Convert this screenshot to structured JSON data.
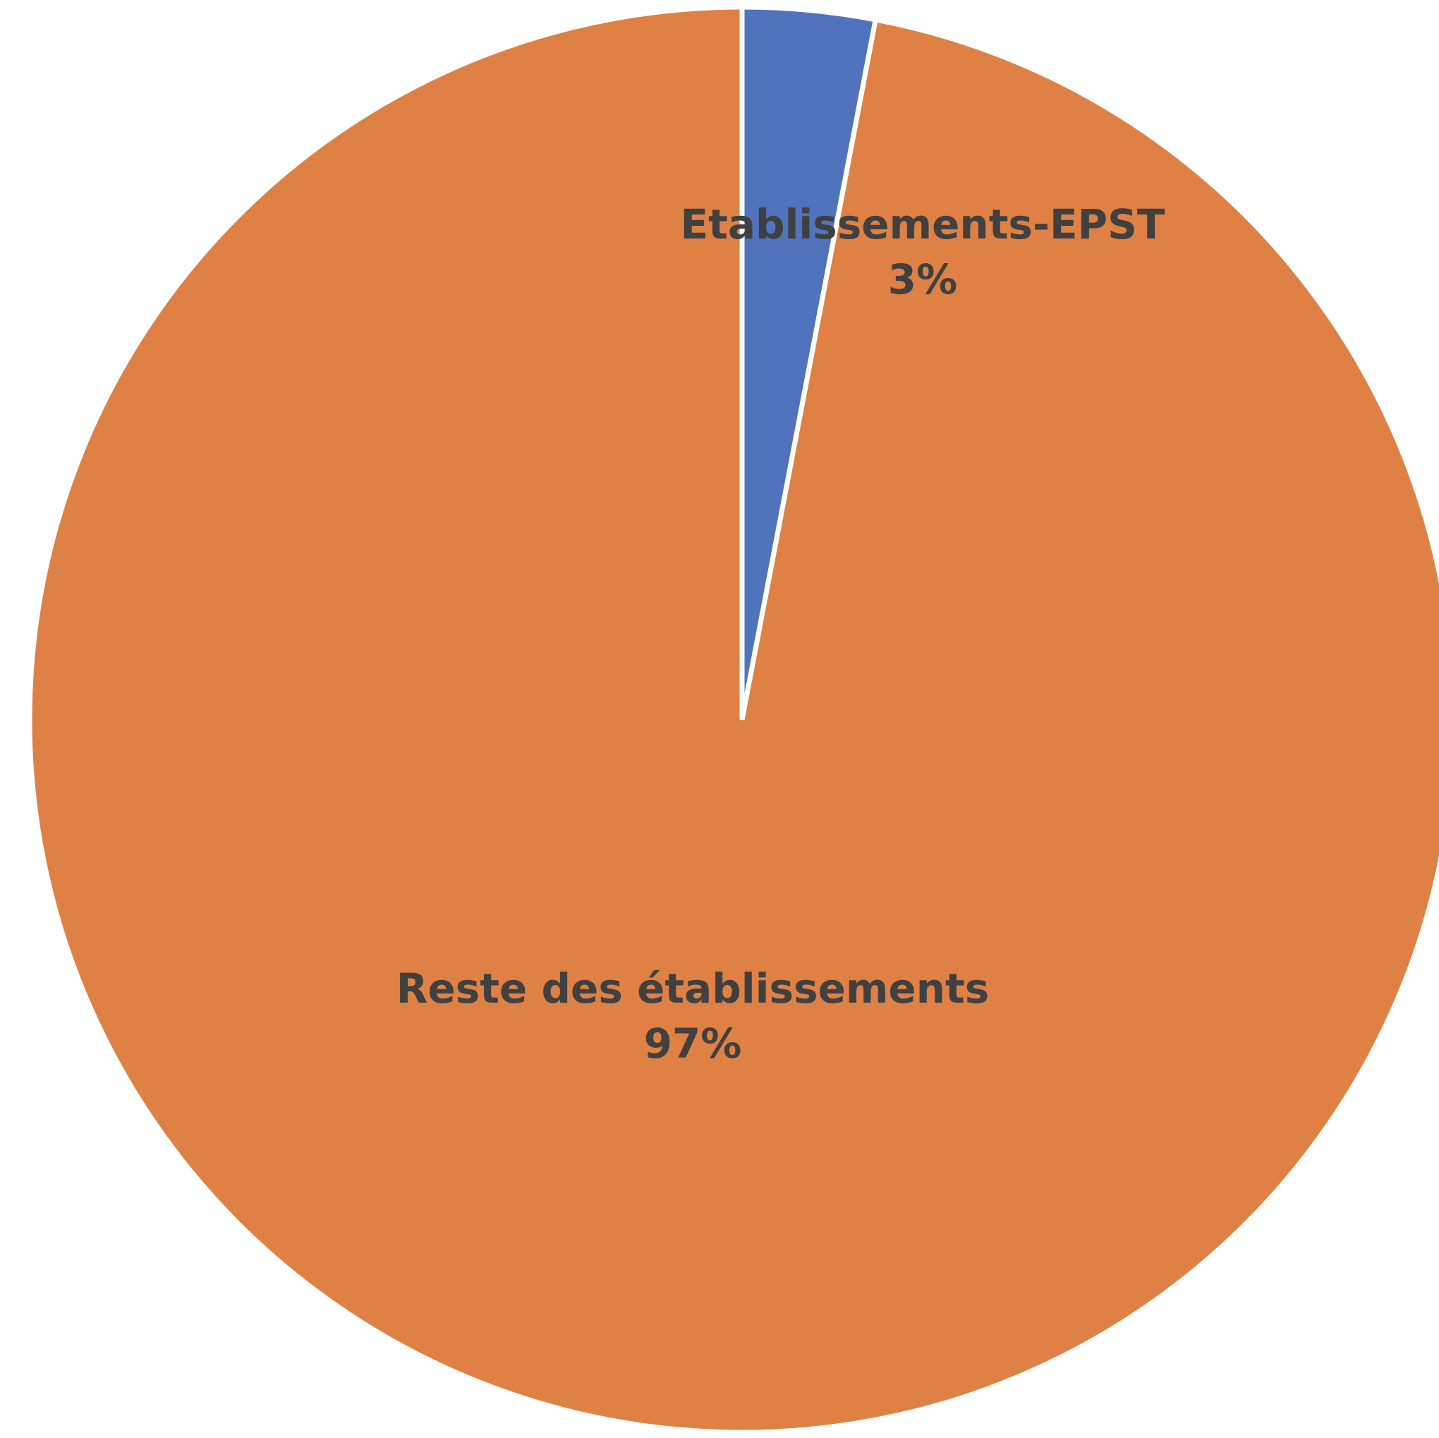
{
  "chart_data": {
    "type": "pie",
    "title": "",
    "start_angle_deg": 0,
    "direction": "clockwise",
    "slices": [
      {
        "label": "Etablissements-EPST",
        "value": 3,
        "value_label": "3%",
        "color": "#5172BC"
      },
      {
        "label": "Reste des établissements",
        "value": 97,
        "value_label": "97%",
        "color": "#DF8144"
      }
    ],
    "legend": "none",
    "data_labels": "category-and-percent"
  }
}
